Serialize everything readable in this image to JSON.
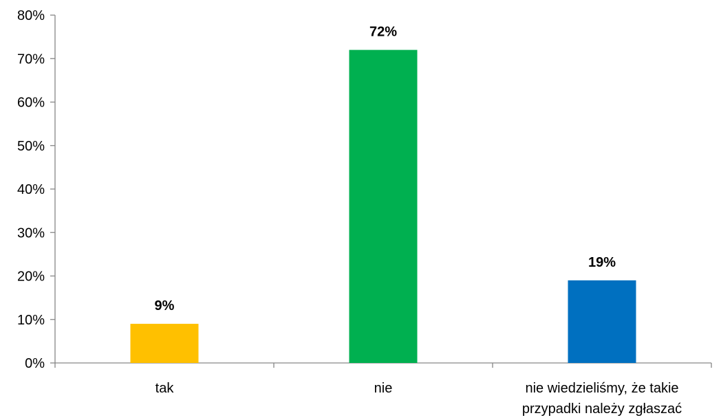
{
  "chart_data": {
    "type": "bar",
    "categories": [
      {
        "lines": [
          "tak"
        ]
      },
      {
        "lines": [
          "nie"
        ]
      },
      {
        "lines": [
          "nie wiedzieliśmy, że takie",
          "przypadki należy zgłaszać"
        ]
      }
    ],
    "values": [
      9,
      72,
      19
    ],
    "data_labels": [
      "9%",
      "72%",
      "19%"
    ],
    "colors": [
      "#FFC000",
      "#00B050",
      "#0070C0"
    ],
    "ylim": [
      0,
      80
    ],
    "yticks": [
      {
        "value": 0,
        "label": "0%"
      },
      {
        "value": 10,
        "label": "10%"
      },
      {
        "value": 20,
        "label": "20%"
      },
      {
        "value": 30,
        "label": "30%"
      },
      {
        "value": 40,
        "label": "40%"
      },
      {
        "value": 50,
        "label": "50%"
      },
      {
        "value": 60,
        "label": "60%"
      },
      {
        "value": 70,
        "label": "70%"
      },
      {
        "value": 80,
        "label": "80%"
      }
    ],
    "grid": false,
    "legend": "none",
    "title": "",
    "xlabel": "",
    "ylabel": ""
  }
}
